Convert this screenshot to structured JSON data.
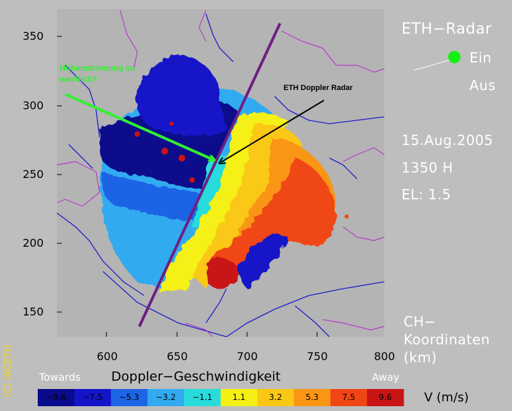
{
  "header": {
    "title": "ETH−Radar",
    "toggle_on": "Ein",
    "toggle_off": "Aus"
  },
  "info": {
    "date": "15.Aug.2005",
    "time": "1350  H",
    "elevation": "EL:  1.5"
  },
  "coords": {
    "line1": "CH−",
    "line2": "Koordinaten",
    "line3": "(km)"
  },
  "axes": {
    "x_ticks": [
      "600",
      "650",
      "700",
      "750",
      "800"
    ],
    "y_ticks": [
      "350",
      "300",
      "250",
      "200",
      "150"
    ]
  },
  "copyright": "(C) IACETH",
  "annotations": {
    "green_line1": "Höhenströmung so",
    "green_line2": "westlich?",
    "black": "ETH Doppler Radar"
  },
  "colorbar": {
    "title": "Doppler−Geschwindigkeit",
    "left_label": "Towards",
    "right_label": "Away",
    "unit": "V  (m/s)",
    "values": [
      "−9.6",
      "−7.5",
      "−5.3",
      "−3.2",
      "−1.1",
      "1.1",
      "3.2",
      "5.3",
      "7.5",
      "9.6"
    ],
    "colors": [
      "#0a0a8c",
      "#1414c8",
      "#1e64e6",
      "#32aaf0",
      "#28dcdc",
      "#f5f014",
      "#fac814",
      "#fa9614",
      "#f04614",
      "#c81414"
    ]
  },
  "colors": {
    "background": "#bebebe",
    "plot_bg": "#b4b4b4",
    "green_arrow": "#32f032",
    "purple_line": "#6e1e82",
    "rivers": "#1e1ec8",
    "borders": "#b43cc8"
  }
}
